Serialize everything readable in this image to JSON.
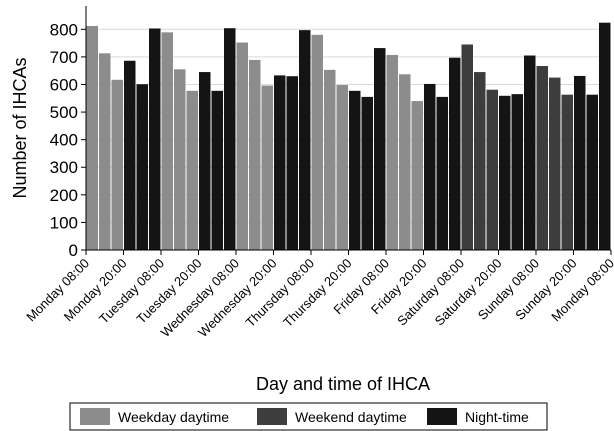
{
  "chart_data": {
    "type": "bar",
    "ylabel": "Number of IHCAs",
    "xlabel": "Day and time of IHCA",
    "ylim": [
      0,
      870
    ],
    "yticks": [
      0,
      100,
      200,
      300,
      400,
      500,
      600,
      700,
      800
    ],
    "grid": "horizontal",
    "tick_labels": [
      "Monday 08:00",
      "Monday 20:00",
      "Tuesday 08:00",
      "Tuesday 20:00",
      "Wednesday 08:00",
      "Wednesday 20:00",
      "Thursday 08:00",
      "Thursday 20:00",
      "Friday 08:00",
      "Friday 20:00",
      "Saturday 08:00",
      "Saturday 20:00",
      "Sunday 08:00",
      "Sunday 20:00",
      "Monday 08:00"
    ],
    "hours_per_bar": 4,
    "legend": {
      "placement": "bottom",
      "entries": [
        {
          "key": "weekday",
          "label": "Weekday daytime",
          "color": "#8c8c8c"
        },
        {
          "key": "weekend",
          "label": "Weekend daytime",
          "color": "#3d3d3d"
        },
        {
          "key": "night",
          "label": "Night-time",
          "color": "#141414"
        }
      ]
    },
    "values": [
      812,
      713,
      617,
      686,
      601,
      803,
      789,
      655,
      577,
      645,
      577,
      804,
      752,
      689,
      596,
      633,
      630,
      797,
      780,
      653,
      598,
      577,
      555,
      732,
      707,
      637,
      540,
      602,
      555,
      697,
      745,
      645,
      581,
      559,
      565,
      705,
      667,
      625,
      563,
      631,
      563,
      824
    ],
    "categories": [
      "weekday",
      "weekday",
      "weekday",
      "night",
      "night",
      "night",
      "weekday",
      "weekday",
      "weekday",
      "night",
      "night",
      "night",
      "weekday",
      "weekday",
      "weekday",
      "night",
      "night",
      "night",
      "weekday",
      "weekday",
      "weekday",
      "night",
      "night",
      "night",
      "weekday",
      "weekday",
      "weekday",
      "night",
      "night",
      "night",
      "weekend",
      "weekend",
      "weekend",
      "night",
      "night",
      "night",
      "weekend",
      "weekend",
      "weekend",
      "night",
      "night",
      "night"
    ]
  }
}
